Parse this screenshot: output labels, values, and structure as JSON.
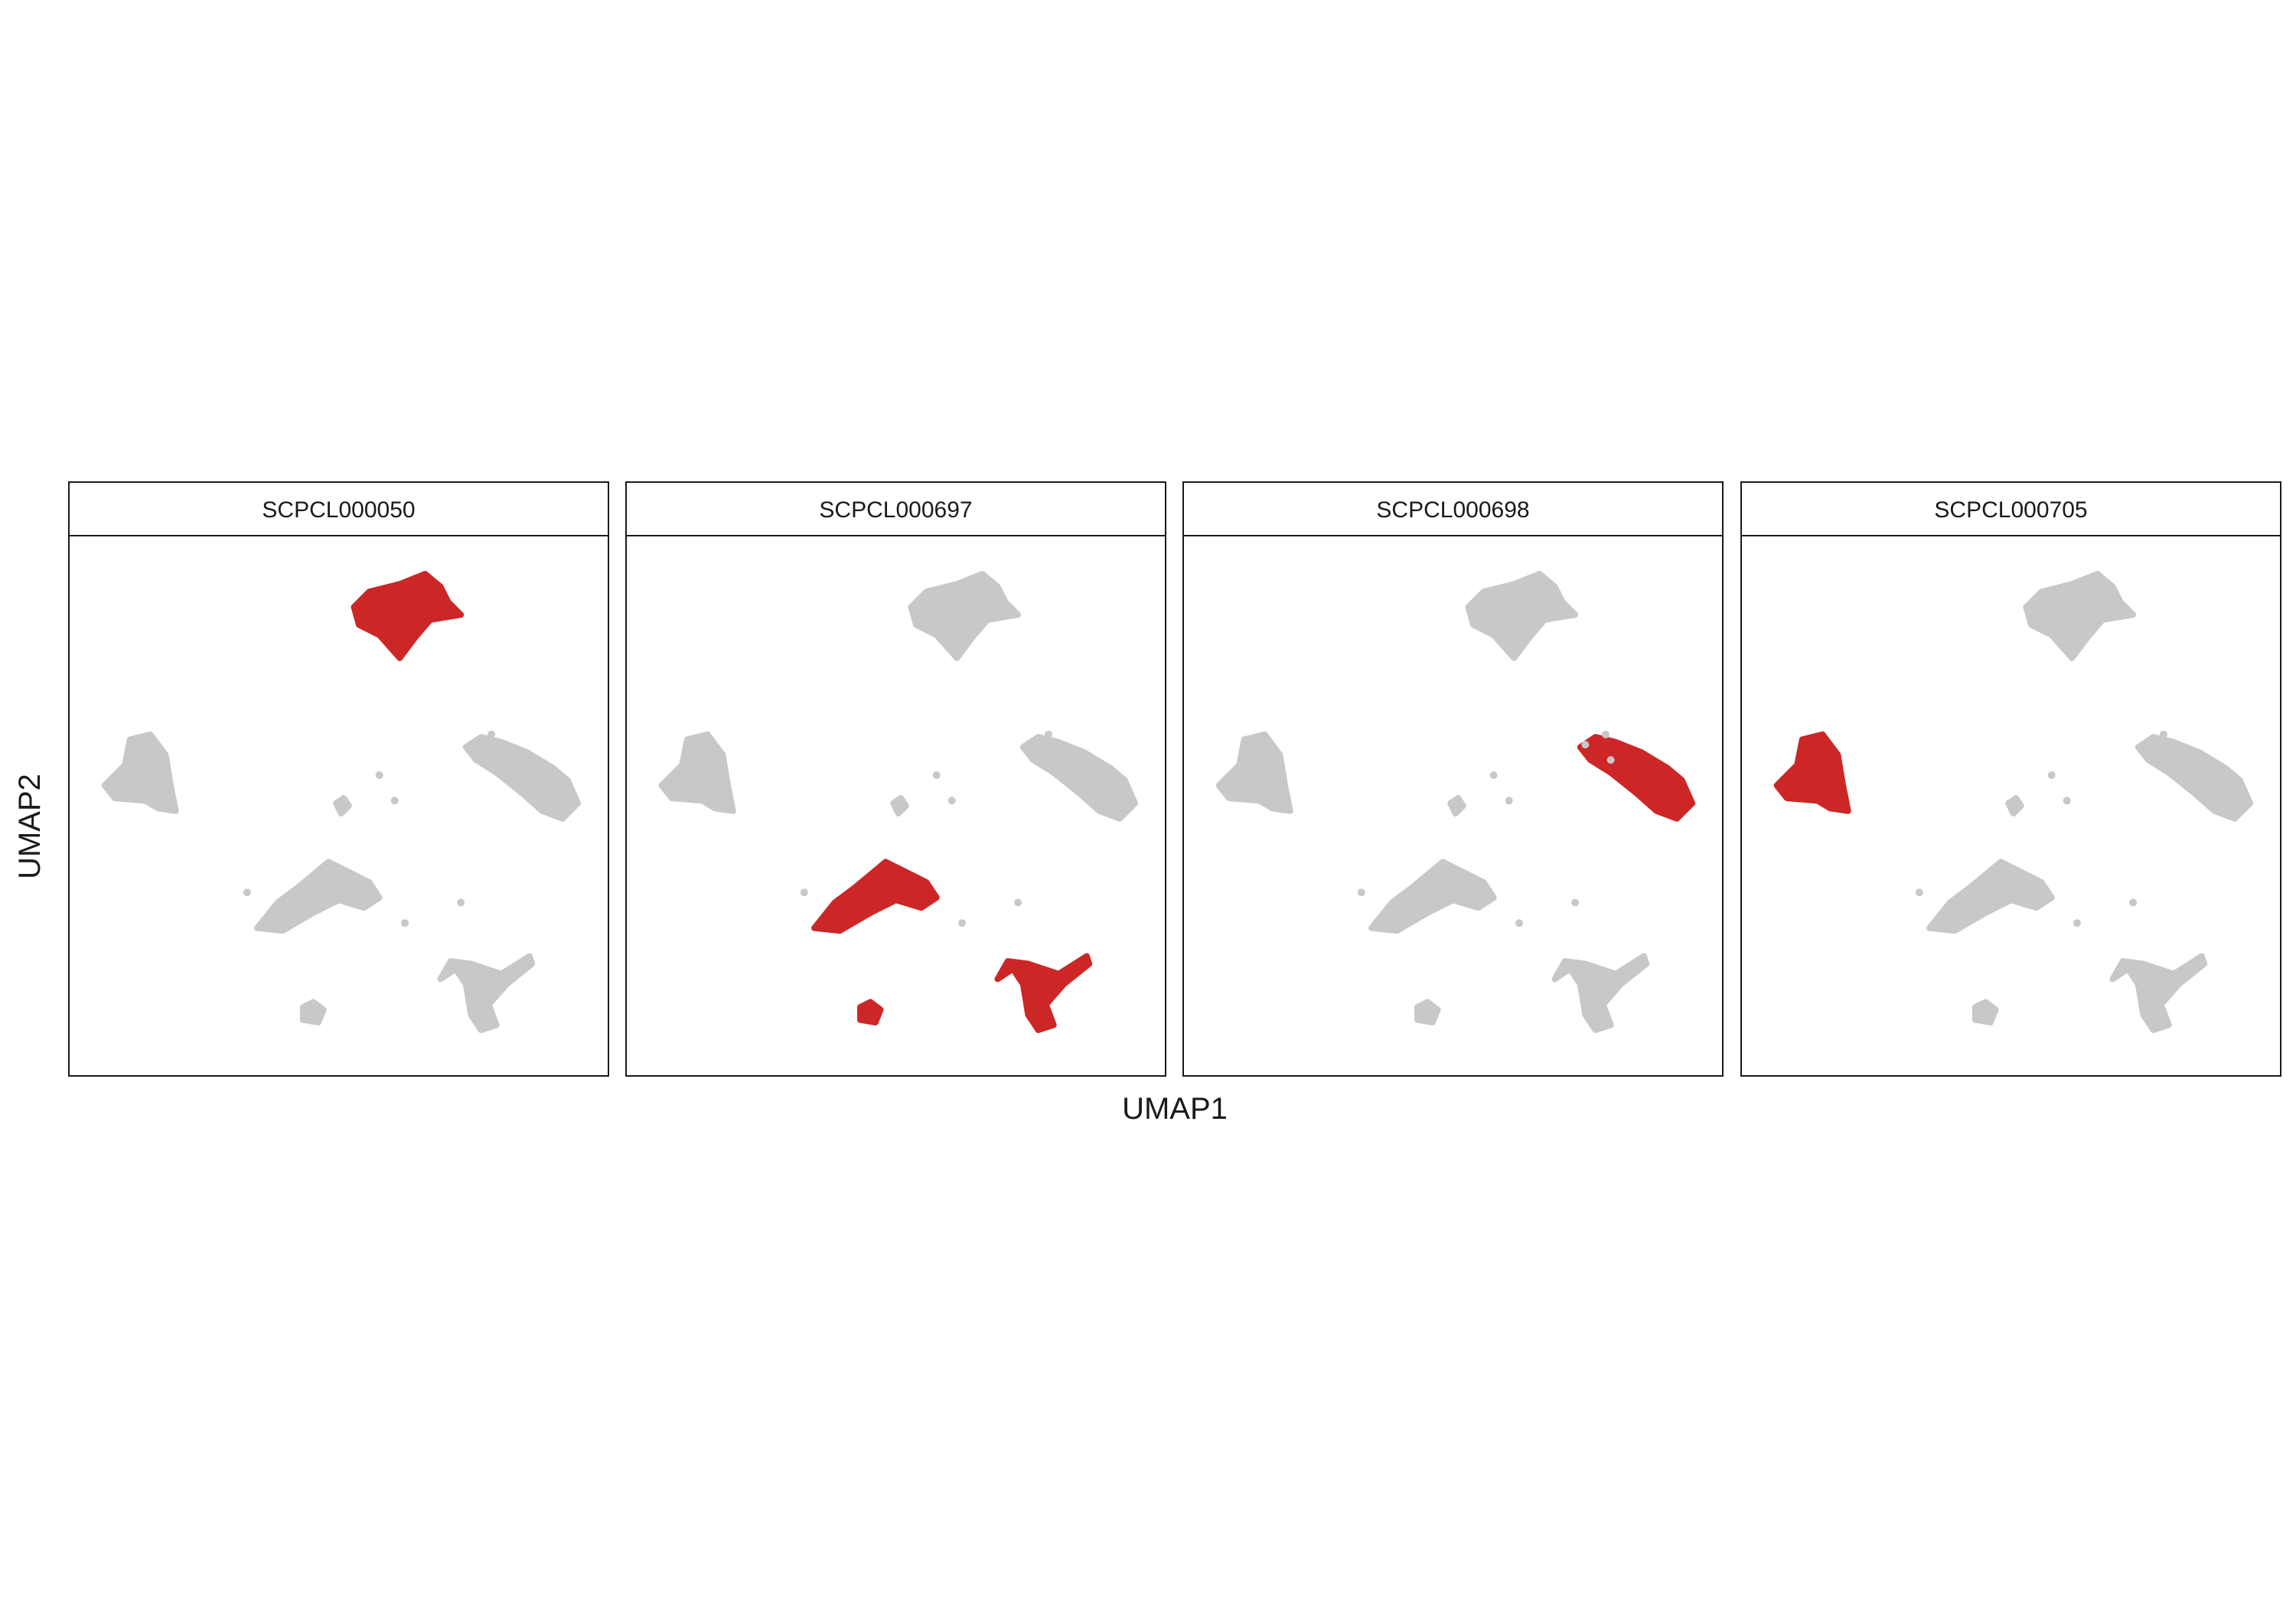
{
  "chart_data": {
    "type": "scatter",
    "title": "",
    "xlabel": "UMAP1",
    "ylabel": "UMAP2",
    "ticks": "none",
    "grid": false,
    "legend": "none",
    "colors": {
      "highlight": "#cd2626",
      "background": "#c8c8c8"
    },
    "clusters": [
      {
        "id": "top",
        "x": 6.5,
        "y": 9.0
      },
      {
        "id": "left",
        "x": 1.1,
        "y": 5.6
      },
      {
        "id": "right",
        "x": 9.0,
        "y": 5.4
      },
      {
        "id": "middle",
        "x": 4.6,
        "y": 3.2
      },
      {
        "id": "bottom-right",
        "x": 7.8,
        "y": 1.2
      },
      {
        "id": "bottom-small",
        "x": 4.5,
        "y": 0.9
      },
      {
        "id": "center-small",
        "x": 5.0,
        "y": 5.0
      }
    ],
    "panels": [
      {
        "label": "SCPCL000050",
        "highlighted": [
          "top"
        ]
      },
      {
        "label": "SCPCL000697",
        "highlighted": [
          "middle",
          "bottom-right",
          "bottom-small"
        ]
      },
      {
        "label": "SCPCL000698",
        "highlighted": [
          "right"
        ]
      },
      {
        "label": "SCPCL000705",
        "highlighted": [
          "left"
        ]
      }
    ],
    "xlim": [
      0,
      10
    ],
    "ylim": [
      0,
      10
    ]
  }
}
